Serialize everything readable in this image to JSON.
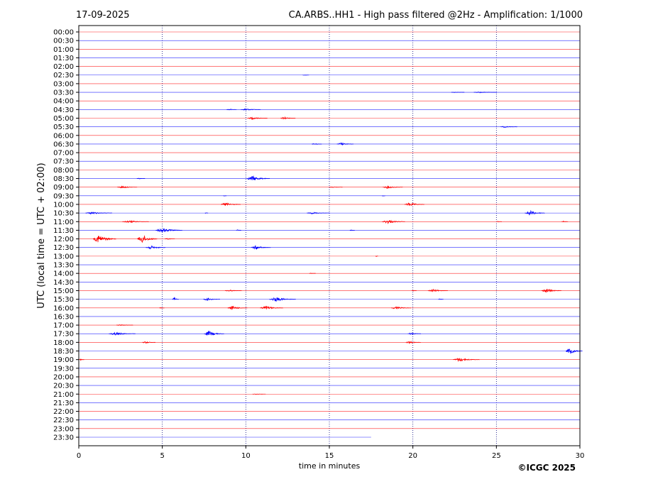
{
  "header": {
    "date": "17-09-2025",
    "title": "CA.ARBS..HH1 - High pass filtered @2Hz - Amplification: 1/1000"
  },
  "footer": {
    "copyright": "©ICGC 2025"
  },
  "chart_data": {
    "type": "line",
    "xlabel": "time in minutes",
    "ylabel": "UTC (local time = UTC + 02:00)",
    "xlim": [
      0,
      30
    ],
    "x_ticks": [
      0,
      5,
      10,
      15,
      20,
      25,
      30
    ],
    "rows": [
      "00:00",
      "00:30",
      "01:00",
      "01:30",
      "02:00",
      "02:30",
      "03:00",
      "03:30",
      "04:00",
      "04:30",
      "05:00",
      "05:30",
      "06:00",
      "06:30",
      "07:00",
      "07:30",
      "08:00",
      "08:30",
      "09:00",
      "09:30",
      "10:00",
      "10:30",
      "11:00",
      "11:30",
      "12:00",
      "12:30",
      "13:00",
      "13:30",
      "14:00",
      "14:30",
      "15:00",
      "15:30",
      "16:00",
      "16:30",
      "17:00",
      "17:30",
      "18:00",
      "18:30",
      "19:00",
      "19:30",
      "20:00",
      "20:30",
      "21:00",
      "21:30",
      "22:00",
      "22:30",
      "23:00",
      "23:30"
    ],
    "row_colors": [
      "#ff0000",
      "#0000ff"
    ],
    "last_row_end_minute": 17.5,
    "grid": "vertical dotted at 5-minute ticks",
    "events": [
      {
        "row": "02:30",
        "minute": 13.5,
        "amp": 0.05,
        "width": 0.4
      },
      {
        "row": "03:30",
        "minute": 24.0,
        "amp": 0.12,
        "width": 1.4
      },
      {
        "row": "03:30",
        "minute": 22.5,
        "amp": 0.06,
        "width": 0.8
      },
      {
        "row": "04:30",
        "minute": 10.0,
        "amp": 0.22,
        "width": 1.2
      },
      {
        "row": "04:30",
        "minute": 9.0,
        "amp": 0.16,
        "width": 0.6
      },
      {
        "row": "05:00",
        "minute": 10.4,
        "amp": 0.25,
        "width": 1.2
      },
      {
        "row": "05:00",
        "minute": 12.3,
        "amp": 0.3,
        "width": 0.9
      },
      {
        "row": "05:30",
        "minute": 25.5,
        "amp": 0.15,
        "width": 1.0
      },
      {
        "row": "06:30",
        "minute": 15.7,
        "amp": 0.28,
        "width": 1.0
      },
      {
        "row": "06:30",
        "minute": 14.1,
        "amp": 0.18,
        "width": 0.6
      },
      {
        "row": "08:30",
        "minute": 10.4,
        "amp": 0.55,
        "width": 1.4
      },
      {
        "row": "08:30",
        "minute": 3.6,
        "amp": 0.08,
        "width": 0.5
      },
      {
        "row": "09:00",
        "minute": 2.6,
        "amp": 0.25,
        "width": 1.2
      },
      {
        "row": "09:00",
        "minute": 18.5,
        "amp": 0.3,
        "width": 1.2
      },
      {
        "row": "09:00",
        "minute": 15.2,
        "amp": 0.08,
        "width": 0.8
      },
      {
        "row": "09:30",
        "minute": 8.7,
        "amp": 0.08,
        "width": 0.2
      },
      {
        "row": "09:30",
        "minute": 18.2,
        "amp": 0.08,
        "width": 0.2
      },
      {
        "row": "10:00",
        "minute": 8.8,
        "amp": 0.4,
        "width": 1.2
      },
      {
        "row": "10:00",
        "minute": 19.8,
        "amp": 0.4,
        "width": 1.2
      },
      {
        "row": "10:30",
        "minute": 0.8,
        "amp": 0.25,
        "width": 1.6
      },
      {
        "row": "10:30",
        "minute": 14.0,
        "amp": 0.18,
        "width": 1.4
      },
      {
        "row": "10:30",
        "minute": 27.0,
        "amp": 0.6,
        "width": 1.2
      },
      {
        "row": "10:30",
        "minute": 7.6,
        "amp": 0.1,
        "width": 0.2
      },
      {
        "row": "11:00",
        "minute": 3.0,
        "amp": 0.25,
        "width": 1.6
      },
      {
        "row": "11:00",
        "minute": 18.5,
        "amp": 0.4,
        "width": 1.4
      },
      {
        "row": "11:00",
        "minute": 25.1,
        "amp": 0.1,
        "width": 0.3
      },
      {
        "row": "11:00",
        "minute": 29.0,
        "amp": 0.15,
        "width": 0.4
      },
      {
        "row": "11:30",
        "minute": 5.0,
        "amp": 0.5,
        "width": 1.6
      },
      {
        "row": "11:30",
        "minute": 9.5,
        "amp": 0.15,
        "width": 0.3
      },
      {
        "row": "11:30",
        "minute": 16.3,
        "amp": 0.1,
        "width": 0.3
      },
      {
        "row": "12:00",
        "minute": 1.2,
        "amp": 0.9,
        "width": 1.4
      },
      {
        "row": "12:00",
        "minute": 3.8,
        "amp": 0.9,
        "width": 1.2
      },
      {
        "row": "12:00",
        "minute": 5.3,
        "amp": 0.15,
        "width": 0.6
      },
      {
        "row": "12:30",
        "minute": 4.3,
        "amp": 0.4,
        "width": 1.2
      },
      {
        "row": "12:30",
        "minute": 10.6,
        "amp": 0.4,
        "width": 1.2
      },
      {
        "row": "13:00",
        "minute": 17.8,
        "amp": 0.12,
        "width": 0.15
      },
      {
        "row": "14:00",
        "minute": 13.9,
        "amp": 0.08,
        "width": 0.4
      },
      {
        "row": "15:00",
        "minute": 9.0,
        "amp": 0.18,
        "width": 1.0
      },
      {
        "row": "15:00",
        "minute": 21.2,
        "amp": 0.3,
        "width": 1.2
      },
      {
        "row": "15:00",
        "minute": 28.0,
        "amp": 0.45,
        "width": 1.2
      },
      {
        "row": "15:00",
        "minute": 20.0,
        "amp": 0.12,
        "width": 0.3
      },
      {
        "row": "15:30",
        "minute": 5.7,
        "amp": 0.4,
        "width": 0.4
      },
      {
        "row": "15:30",
        "minute": 7.7,
        "amp": 0.3,
        "width": 1.0
      },
      {
        "row": "15:30",
        "minute": 11.8,
        "amp": 0.5,
        "width": 1.6
      },
      {
        "row": "15:30",
        "minute": 21.6,
        "amp": 0.12,
        "width": 0.3
      },
      {
        "row": "16:00",
        "minute": 9.2,
        "amp": 0.4,
        "width": 1.2
      },
      {
        "row": "16:00",
        "minute": 11.2,
        "amp": 0.4,
        "width": 1.4
      },
      {
        "row": "16:00",
        "minute": 19.0,
        "amp": 0.3,
        "width": 1.2
      },
      {
        "row": "16:00",
        "minute": 4.9,
        "amp": 0.12,
        "width": 0.3
      },
      {
        "row": "17:00",
        "minute": 2.5,
        "amp": 0.12,
        "width": 1.0
      },
      {
        "row": "17:30",
        "minute": 2.2,
        "amp": 0.3,
        "width": 1.6
      },
      {
        "row": "17:30",
        "minute": 7.8,
        "amp": 0.6,
        "width": 1.2
      },
      {
        "row": "17:30",
        "minute": 19.9,
        "amp": 0.2,
        "width": 0.8
      },
      {
        "row": "18:00",
        "minute": 4.0,
        "amp": 0.22,
        "width": 0.8
      },
      {
        "row": "18:00",
        "minute": 19.8,
        "amp": 0.3,
        "width": 0.9
      },
      {
        "row": "18:30",
        "minute": 29.4,
        "amp": 0.7,
        "width": 1.0
      },
      {
        "row": "19:00",
        "minute": 0.1,
        "amp": 0.15,
        "width": 0.3
      },
      {
        "row": "19:00",
        "minute": 22.8,
        "amp": 0.4,
        "width": 1.6
      },
      {
        "row": "21:00",
        "minute": 10.6,
        "amp": 0.06,
        "width": 0.8
      }
    ]
  }
}
